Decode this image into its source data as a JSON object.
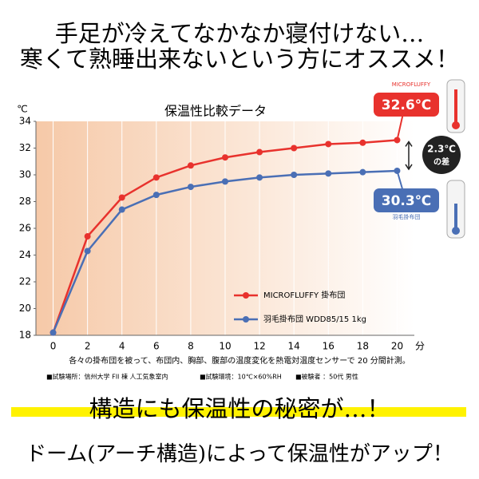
{
  "header": {
    "lines": [
      "手足が冷えてなかなか寝付けない…",
      "寒くて熟睡出来ないという方にオススメ！"
    ]
  },
  "chart_data": {
    "type": "line",
    "title": "保温性比較データ",
    "y_unit": "℃",
    "x_unit": "分",
    "x": [
      0,
      2,
      4,
      6,
      8,
      10,
      12,
      14,
      16,
      18,
      20
    ],
    "xlim": [
      -1,
      21
    ],
    "xticks": [
      0,
      2,
      4,
      6,
      8,
      10,
      12,
      14,
      16,
      18,
      20
    ],
    "ylim": [
      18,
      34
    ],
    "yticks": [
      18,
      20,
      22,
      24,
      26,
      28,
      30,
      32,
      34
    ],
    "grid": true,
    "legend": "lower right",
    "series": [
      {
        "name": "MICROFLUFFY 掛布団",
        "color": "#e8322d",
        "values": [
          18.2,
          25.4,
          28.3,
          29.8,
          30.7,
          31.3,
          31.7,
          32.0,
          32.3,
          32.4,
          32.6
        ]
      },
      {
        "name": "羽毛掛布団 WDD85/15 1kg",
        "color": "#4a6fb5",
        "values": [
          18.2,
          24.3,
          27.4,
          28.5,
          29.1,
          29.5,
          29.8,
          30.0,
          30.1,
          30.2,
          30.3
        ]
      }
    ],
    "annotations": {
      "high": "32.6℃",
      "low": "30.3℃",
      "diff": "2.3℃",
      "diff_suffix": "の差",
      "thermo_high": "MICROFLUFFY",
      "thermo_low": "羽毛掛布団"
    }
  },
  "notes": {
    "description": "各々の掛布団を被って、布団内、胸部、腹部の温度変化を熱電対温度センサーで 20 分間計測。",
    "conditions": [
      "■試験場所：信州大学 FII 棟 人工気象室内",
      "■試験環境：10℃×60%RH",
      "■被験者 ：50代 男性"
    ]
  },
  "footer": {
    "lines": [
      "構造にも保温性の秘密が…！",
      "ドーム(アーチ構造)によって保温性がアップ！"
    ]
  }
}
